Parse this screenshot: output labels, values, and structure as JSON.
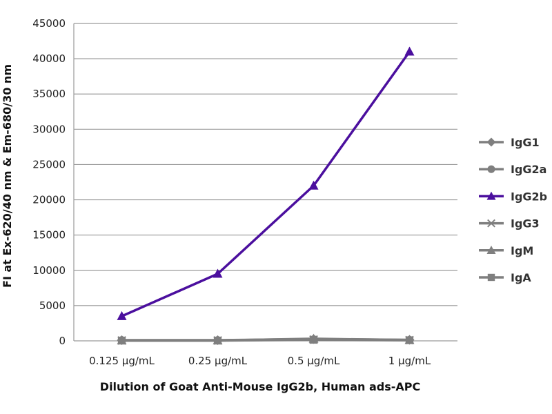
{
  "chart_data": {
    "type": "line",
    "title": "",
    "xlabel": "Dilution of Goat Anti-Mouse IgG2b, Human ads-APC",
    "ylabel": "FI at Ex-620/40 nm & Em-680/30 nm",
    "categories": [
      "0.125 µg/mL",
      "0.25 µg/mL",
      "0.5 µg/mL",
      "1 µg/mL"
    ],
    "ylim": [
      0,
      45000
    ],
    "yticks": [
      0,
      5000,
      10000,
      15000,
      20000,
      25000,
      30000,
      35000,
      40000,
      45000
    ],
    "grid": true,
    "legend_position": "right",
    "series": [
      {
        "name": "IgG1",
        "values": [
          100,
          100,
          250,
          150
        ],
        "color": "#7f7f7f",
        "marker": "diamond"
      },
      {
        "name": "IgG2a",
        "values": [
          80,
          80,
          200,
          120
        ],
        "color": "#7f7f7f",
        "marker": "circle"
      },
      {
        "name": "IgG2b",
        "values": [
          3500,
          9500,
          22000,
          41000
        ],
        "color": "#4b0f9e",
        "marker": "triangle"
      },
      {
        "name": "IgG3",
        "values": [
          60,
          60,
          180,
          100
        ],
        "color": "#7f7f7f",
        "marker": "x"
      },
      {
        "name": "IgM",
        "values": [
          50,
          50,
          300,
          110
        ],
        "color": "#7f7f7f",
        "marker": "triangle"
      },
      {
        "name": "IgA",
        "values": [
          40,
          40,
          150,
          90
        ],
        "color": "#7f7f7f",
        "marker": "square"
      }
    ]
  }
}
